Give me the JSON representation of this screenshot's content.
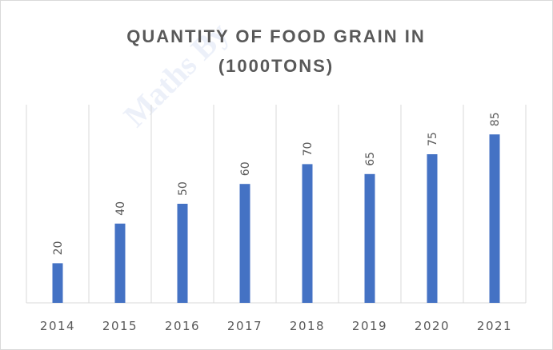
{
  "chart_data": {
    "type": "bar",
    "title": "QUANTITY OF FOOD GRAIN IN (1000TONS)",
    "title_lines": [
      "QUANTITY OF FOOD GRAIN IN",
      "(1000TONS)"
    ],
    "categories": [
      "2014",
      "2015",
      "2016",
      "2017",
      "2018",
      "2019",
      "2020",
      "2021"
    ],
    "values": [
      20,
      40,
      50,
      60,
      70,
      65,
      75,
      85
    ],
    "data_labels": [
      "20",
      "40",
      "50",
      "60",
      "70",
      "65",
      "75",
      "85"
    ],
    "ylim": [
      0,
      100
    ],
    "grid": "vertical category dividers",
    "legend": "none",
    "bar_color": "#4472c4",
    "gridline_color": "#d9d9d9",
    "text_color": "#595959"
  },
  "watermark": "Maths By"
}
